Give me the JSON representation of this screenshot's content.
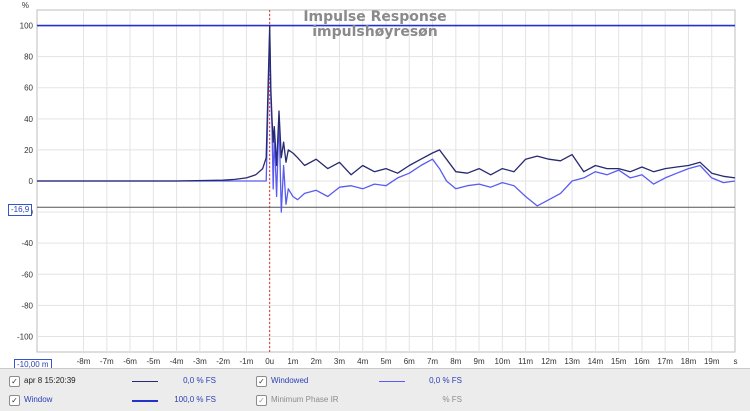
{
  "chart_data": {
    "type": "line",
    "title": "Impulse Response",
    "subtitle": "impulshøyresøn",
    "ylabel": "%",
    "xlabel": "s",
    "xlim": [
      -10,
      20
    ],
    "ylim": [
      -110,
      110
    ],
    "yticks": [
      100,
      80,
      60,
      40,
      20,
      0,
      -20,
      -40,
      -60,
      -80,
      -100
    ],
    "xticks": [
      {
        "v": -8,
        "label": "-8m"
      },
      {
        "v": -7,
        "label": "-7m"
      },
      {
        "v": -6,
        "label": "-6m"
      },
      {
        "v": -5,
        "label": "-5m"
      },
      {
        "v": -4,
        "label": "-4m"
      },
      {
        "v": -3,
        "label": "-3m"
      },
      {
        "v": -2,
        "label": "-2m"
      },
      {
        "v": -1,
        "label": "-1m"
      },
      {
        "v": 0,
        "label": "0u"
      },
      {
        "v": 1,
        "label": "1m"
      },
      {
        "v": 2,
        "label": "2m"
      },
      {
        "v": 3,
        "label": "3m"
      },
      {
        "v": 4,
        "label": "4m"
      },
      {
        "v": 5,
        "label": "5m"
      },
      {
        "v": 6,
        "label": "6m"
      },
      {
        "v": 7,
        "label": "7m"
      },
      {
        "v": 8,
        "label": "8m"
      },
      {
        "v": 9,
        "label": "9m"
      },
      {
        "v": 10,
        "label": "10m"
      },
      {
        "v": 11,
        "label": "11m"
      },
      {
        "v": 12,
        "label": "12m"
      },
      {
        "v": 13,
        "label": "13m"
      },
      {
        "v": 14,
        "label": "14m"
      },
      {
        "v": 15,
        "label": "15m"
      },
      {
        "v": 16,
        "label": "16m"
      },
      {
        "v": 17,
        "label": "17m"
      },
      {
        "v": 18,
        "label": "18m"
      },
      {
        "v": 19,
        "label": "19m"
      },
      {
        "v": 19.85,
        "label": "s"
      }
    ],
    "grid": true,
    "cursor_y_label": "-16,9",
    "cursor_y_value": -16.9,
    "cursor_x_label": "-10,00 m",
    "series": [
      {
        "name": "apr 8 15:20:39",
        "color": "#262a6e",
        "x": [
          -10,
          -8,
          -6,
          -4,
          -2,
          -1.5,
          -1,
          -0.6,
          -0.3,
          -0.15,
          0,
          0.05,
          0.1,
          0.15,
          0.2,
          0.3,
          0.4,
          0.5,
          0.6,
          0.7,
          0.8,
          1,
          1.2,
          1.5,
          2,
          2.5,
          3,
          3.5,
          4,
          4.5,
          5,
          5.5,
          6,
          6.5,
          7,
          7.3,
          7.6,
          8,
          8.5,
          9,
          9.5,
          10,
          10.5,
          11,
          11.5,
          12,
          12.5,
          13,
          13.5,
          14,
          14.5,
          15,
          15.5,
          16,
          16.5,
          17,
          17.5,
          18,
          18.5,
          19,
          19.5,
          20
        ],
        "y": [
          0,
          0,
          0,
          0,
          0.5,
          1,
          2,
          4,
          8,
          15,
          100,
          60,
          40,
          25,
          35,
          10,
          45,
          15,
          25,
          12,
          20,
          18,
          15,
          10,
          14,
          8,
          12,
          4,
          10,
          6,
          8,
          5,
          10,
          14,
          18,
          20,
          14,
          6,
          5,
          8,
          4,
          8,
          6,
          14,
          16,
          14,
          13,
          17,
          6,
          10,
          8,
          8,
          6,
          9,
          6,
          8,
          9,
          10,
          12,
          5,
          3,
          2
        ]
      },
      {
        "name": "Windowed",
        "color": "#5a5cf0",
        "x": [
          -10,
          -8,
          -6,
          -4,
          -2,
          -1.5,
          -1,
          -0.6,
          -0.3,
          -0.15,
          0,
          0.05,
          0.1,
          0.15,
          0.2,
          0.3,
          0.4,
          0.5,
          0.6,
          0.7,
          0.8,
          1,
          1.2,
          1.5,
          2,
          2.5,
          3,
          3.5,
          4,
          4.5,
          5,
          5.5,
          6,
          6.5,
          7,
          7.3,
          7.6,
          8,
          8.5,
          9,
          9.5,
          10,
          10.5,
          11,
          11.5,
          12,
          12.5,
          13,
          13.5,
          14,
          14.5,
          15,
          15.5,
          16,
          16.5,
          17,
          17.5,
          18,
          18.5,
          19,
          19.5,
          20
        ],
        "y": [
          0,
          0,
          0,
          0,
          0,
          0,
          0,
          0,
          0,
          0,
          95,
          55,
          35,
          -5,
          30,
          -10,
          40,
          -20,
          10,
          -15,
          -5,
          -10,
          -12,
          -8,
          -6,
          -10,
          -4,
          -3,
          -5,
          -2,
          -3,
          2,
          5,
          10,
          14,
          8,
          0,
          -5,
          -3,
          -2,
          -4,
          -1,
          -3,
          -10,
          -16,
          -12,
          -8,
          0,
          2,
          6,
          4,
          7,
          2,
          4,
          -2,
          2,
          5,
          8,
          10,
          2,
          -1,
          0
        ]
      }
    ]
  },
  "legend": {
    "row1": {
      "left_label": "apr 8 15:20:39",
      "left_value": "0,0 % FS",
      "right_label": "Windowed",
      "right_value": "0,0 % FS"
    },
    "row2": {
      "left_label": "Window",
      "left_value": "100,0 % FS",
      "right_label": "Minimum Phase IR",
      "right_value": "% FS"
    }
  },
  "colors": {
    "dark_series": "#262a6e",
    "light_series": "#5a5cf0",
    "window": "#2233cc",
    "cursor_line": "#555555",
    "zero_cursor": "#e03030",
    "label_blue": "#2a3fb5"
  }
}
